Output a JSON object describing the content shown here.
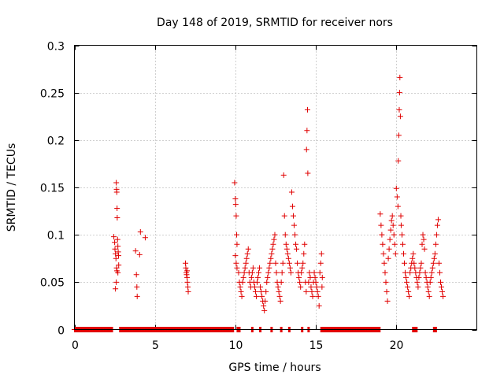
{
  "chart_data": {
    "type": "scatter",
    "title": "Day 148 of 2019, SRMTID for receiver nors",
    "xlabel": "GPS time / hours",
    "ylabel": "SRMTID / TECUs",
    "xlim": [
      0,
      25
    ],
    "ylim": [
      0,
      0.3
    ],
    "xticks": [
      0,
      5,
      10,
      15,
      20
    ],
    "xtick_labels": [
      "0",
      "5",
      "10",
      "15",
      "20"
    ],
    "yticks": [
      0,
      0.05,
      0.1,
      0.15,
      0.2,
      0.25,
      0.3
    ],
    "ytick_labels": [
      "0",
      "0.05",
      "0.1",
      "0.15",
      "0.2",
      "0.25",
      "0.3"
    ],
    "grid": true,
    "marker": "+",
    "color": "#e00000",
    "series": [
      {
        "name": "nors",
        "points": [
          [
            2.45,
            0.098
          ],
          [
            2.5,
            0.092
          ],
          [
            2.52,
            0.085
          ],
          [
            2.55,
            0.08
          ],
          [
            2.58,
            0.075
          ],
          [
            2.6,
            0.155
          ],
          [
            2.62,
            0.148
          ],
          [
            2.63,
            0.145
          ],
          [
            2.65,
            0.128
          ],
          [
            2.66,
            0.118
          ],
          [
            2.68,
            0.095
          ],
          [
            2.7,
            0.088
          ],
          [
            2.72,
            0.082
          ],
          [
            2.74,
            0.078
          ],
          [
            2.75,
            0.068
          ],
          [
            2.62,
            0.065
          ],
          [
            2.64,
            0.062
          ],
          [
            2.7,
            0.06
          ],
          [
            2.55,
            0.043
          ],
          [
            2.6,
            0.05
          ],
          [
            3.8,
            0.083
          ],
          [
            3.85,
            0.058
          ],
          [
            3.88,
            0.045
          ],
          [
            3.9,
            0.035
          ],
          [
            4.05,
            0.079
          ],
          [
            4.1,
            0.103
          ],
          [
            4.4,
            0.097
          ],
          [
            6.9,
            0.07
          ],
          [
            6.92,
            0.065
          ],
          [
            6.95,
            0.06
          ],
          [
            6.97,
            0.058
          ],
          [
            7.0,
            0.055
          ],
          [
            7.02,
            0.05
          ],
          [
            7.05,
            0.045
          ],
          [
            7.07,
            0.04
          ],
          [
            7.0,
            0.062
          ],
          [
            9.95,
            0.155
          ],
          [
            10.0,
            0.138
          ],
          [
            10.02,
            0.132
          ],
          [
            10.05,
            0.12
          ],
          [
            10.08,
            0.1
          ],
          [
            10.1,
            0.09
          ],
          [
            10.0,
            0.078
          ],
          [
            10.05,
            0.07
          ],
          [
            10.1,
            0.065
          ],
          [
            10.2,
            0.06
          ],
          [
            10.25,
            0.05
          ],
          [
            10.3,
            0.045
          ],
          [
            10.35,
            0.04
          ],
          [
            10.4,
            0.035
          ],
          [
            10.45,
            0.05
          ],
          [
            10.5,
            0.055
          ],
          [
            10.55,
            0.06
          ],
          [
            10.6,
            0.065
          ],
          [
            10.65,
            0.07
          ],
          [
            10.7,
            0.075
          ],
          [
            10.75,
            0.08
          ],
          [
            10.8,
            0.085
          ],
          [
            10.85,
            0.06
          ],
          [
            10.9,
            0.05
          ],
          [
            10.95,
            0.045
          ],
          [
            11.0,
            0.055
          ],
          [
            11.05,
            0.06
          ],
          [
            11.1,
            0.065
          ],
          [
            11.15,
            0.05
          ],
          [
            11.2,
            0.045
          ],
          [
            11.25,
            0.04
          ],
          [
            11.3,
            0.035
          ],
          [
            11.35,
            0.05
          ],
          [
            11.4,
            0.055
          ],
          [
            11.45,
            0.06
          ],
          [
            11.5,
            0.065
          ],
          [
            11.55,
            0.045
          ],
          [
            11.6,
            0.04
          ],
          [
            11.65,
            0.035
          ],
          [
            11.7,
            0.03
          ],
          [
            11.75,
            0.025
          ],
          [
            11.8,
            0.02
          ],
          [
            11.85,
            0.03
          ],
          [
            11.9,
            0.04
          ],
          [
            11.95,
            0.05
          ],
          [
            12.0,
            0.055
          ],
          [
            12.05,
            0.06
          ],
          [
            12.1,
            0.065
          ],
          [
            12.15,
            0.07
          ],
          [
            12.2,
            0.075
          ],
          [
            12.25,
            0.08
          ],
          [
            12.3,
            0.085
          ],
          [
            12.35,
            0.09
          ],
          [
            12.4,
            0.095
          ],
          [
            12.45,
            0.1
          ],
          [
            12.5,
            0.07
          ],
          [
            12.55,
            0.06
          ],
          [
            12.6,
            0.05
          ],
          [
            12.65,
            0.045
          ],
          [
            12.7,
            0.04
          ],
          [
            12.75,
            0.035
          ],
          [
            12.8,
            0.03
          ],
          [
            12.85,
            0.05
          ],
          [
            12.9,
            0.06
          ],
          [
            12.95,
            0.07
          ],
          [
            13.0,
            0.163
          ],
          [
            13.05,
            0.12
          ],
          [
            13.1,
            0.1
          ],
          [
            13.15,
            0.09
          ],
          [
            13.2,
            0.085
          ],
          [
            13.25,
            0.08
          ],
          [
            13.3,
            0.075
          ],
          [
            13.35,
            0.07
          ],
          [
            13.4,
            0.065
          ],
          [
            13.45,
            0.06
          ],
          [
            13.5,
            0.145
          ],
          [
            13.55,
            0.13
          ],
          [
            13.6,
            0.12
          ],
          [
            13.65,
            0.11
          ],
          [
            13.7,
            0.1
          ],
          [
            13.75,
            0.09
          ],
          [
            13.8,
            0.085
          ],
          [
            13.85,
            0.07
          ],
          [
            13.9,
            0.06
          ],
          [
            13.95,
            0.055
          ],
          [
            14.0,
            0.05
          ],
          [
            14.05,
            0.045
          ],
          [
            14.1,
            0.06
          ],
          [
            14.15,
            0.065
          ],
          [
            14.2,
            0.07
          ],
          [
            14.25,
            0.08
          ],
          [
            14.3,
            0.09
          ],
          [
            14.35,
            0.05
          ],
          [
            14.4,
            0.04
          ],
          [
            14.42,
            0.19
          ],
          [
            14.45,
            0.21
          ],
          [
            14.48,
            0.232
          ],
          [
            14.5,
            0.165
          ],
          [
            14.55,
            0.05
          ],
          [
            14.6,
            0.06
          ],
          [
            14.65,
            0.055
          ],
          [
            14.7,
            0.045
          ],
          [
            14.75,
            0.04
          ],
          [
            14.8,
            0.035
          ],
          [
            14.85,
            0.05
          ],
          [
            14.9,
            0.06
          ],
          [
            14.95,
            0.055
          ],
          [
            15.0,
            0.05
          ],
          [
            15.05,
            0.045
          ],
          [
            15.1,
            0.04
          ],
          [
            15.15,
            0.035
          ],
          [
            15.2,
            0.025
          ],
          [
            15.25,
            0.06
          ],
          [
            15.3,
            0.07
          ],
          [
            15.35,
            0.08
          ],
          [
            15.38,
            0.045
          ],
          [
            15.4,
            0.055
          ],
          [
            19.0,
            0.122
          ],
          [
            19.05,
            0.11
          ],
          [
            19.1,
            0.1
          ],
          [
            19.15,
            0.09
          ],
          [
            19.2,
            0.08
          ],
          [
            19.25,
            0.07
          ],
          [
            19.3,
            0.06
          ],
          [
            19.35,
            0.05
          ],
          [
            19.4,
            0.04
          ],
          [
            19.45,
            0.03
          ],
          [
            19.5,
            0.075
          ],
          [
            19.55,
            0.085
          ],
          [
            19.6,
            0.095
          ],
          [
            19.65,
            0.105
          ],
          [
            19.7,
            0.115
          ],
          [
            19.75,
            0.12
          ],
          [
            19.8,
            0.11
          ],
          [
            19.85,
            0.1
          ],
          [
            19.9,
            0.09
          ],
          [
            19.95,
            0.08
          ],
          [
            20.0,
            0.149
          ],
          [
            20.05,
            0.14
          ],
          [
            20.1,
            0.13
          ],
          [
            20.12,
            0.178
          ],
          [
            20.15,
            0.205
          ],
          [
            20.18,
            0.232
          ],
          [
            20.2,
            0.25
          ],
          [
            20.22,
            0.266
          ],
          [
            20.25,
            0.225
          ],
          [
            20.28,
            0.12
          ],
          [
            20.3,
            0.11
          ],
          [
            20.35,
            0.1
          ],
          [
            20.4,
            0.09
          ],
          [
            20.45,
            0.08
          ],
          [
            20.5,
            0.07
          ],
          [
            20.55,
            0.06
          ],
          [
            20.6,
            0.055
          ],
          [
            20.65,
            0.05
          ],
          [
            20.7,
            0.045
          ],
          [
            20.75,
            0.04
          ],
          [
            20.8,
            0.035
          ],
          [
            20.85,
            0.06
          ],
          [
            20.9,
            0.065
          ],
          [
            20.95,
            0.07
          ],
          [
            21.0,
            0.075
          ],
          [
            21.05,
            0.08
          ],
          [
            21.1,
            0.07
          ],
          [
            21.15,
            0.065
          ],
          [
            21.2,
            0.06
          ],
          [
            21.25,
            0.055
          ],
          [
            21.3,
            0.05
          ],
          [
            21.35,
            0.045
          ],
          [
            21.4,
            0.055
          ],
          [
            21.45,
            0.06
          ],
          [
            21.5,
            0.065
          ],
          [
            21.55,
            0.07
          ],
          [
            21.6,
            0.09
          ],
          [
            21.65,
            0.1
          ],
          [
            21.7,
            0.095
          ],
          [
            21.75,
            0.085
          ],
          [
            21.8,
            0.06
          ],
          [
            21.85,
            0.055
          ],
          [
            21.9,
            0.05
          ],
          [
            21.95,
            0.045
          ],
          [
            22.0,
            0.04
          ],
          [
            22.05,
            0.035
          ],
          [
            22.1,
            0.05
          ],
          [
            22.15,
            0.055
          ],
          [
            22.2,
            0.06
          ],
          [
            22.25,
            0.065
          ],
          [
            22.3,
            0.07
          ],
          [
            22.35,
            0.075
          ],
          [
            22.4,
            0.08
          ],
          [
            22.45,
            0.09
          ],
          [
            22.5,
            0.1
          ],
          [
            22.55,
            0.11
          ],
          [
            22.6,
            0.116
          ],
          [
            22.65,
            0.07
          ],
          [
            22.7,
            0.06
          ],
          [
            22.75,
            0.05
          ],
          [
            22.8,
            0.045
          ],
          [
            22.85,
            0.04
          ],
          [
            22.9,
            0.035
          ]
        ]
      }
    ],
    "zero_runs": [
      [
        0.0,
        2.4
      ],
      [
        2.8,
        9.9
      ],
      [
        10.1,
        10.3
      ],
      [
        11.0,
        11.1
      ],
      [
        11.5,
        11.6
      ],
      [
        12.2,
        12.3
      ],
      [
        12.8,
        12.9
      ],
      [
        13.3,
        13.4
      ],
      [
        14.1,
        14.2
      ],
      [
        14.5,
        14.6
      ],
      [
        15.3,
        19.0
      ],
      [
        21.0,
        21.3
      ],
      [
        22.3,
        22.5
      ]
    ]
  }
}
